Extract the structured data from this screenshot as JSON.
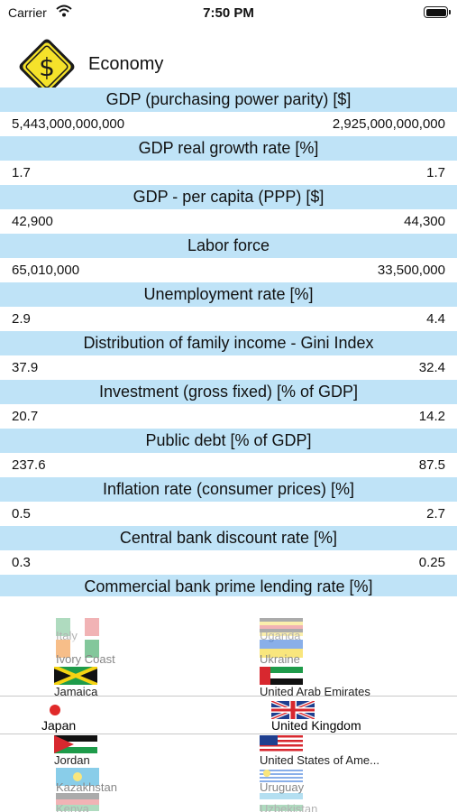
{
  "status": {
    "carrier": "Carrier",
    "time": "7:50 PM"
  },
  "header": {
    "title": "Economy",
    "icon_symbol": "$"
  },
  "rows": [
    {
      "title": "GDP (purchasing power parity) [$]",
      "left": "5,443,000,000,000",
      "right": "2,925,000,000,000"
    },
    {
      "title": "GDP real growth rate [%]",
      "left": "1.7",
      "right": "1.7"
    },
    {
      "title": "GDP - per capita (PPP) [$]",
      "left": "42,900",
      "right": "44,300"
    },
    {
      "title": "Labor force",
      "left": "65,010,000",
      "right": "33,500,000"
    },
    {
      "title": "Unemployment rate [%]",
      "left": "2.9",
      "right": "4.4"
    },
    {
      "title": "Distribution of family income - Gini Index",
      "left": "37.9",
      "right": "32.4"
    },
    {
      "title": "Investment (gross fixed) [% of GDP]",
      "left": "20.7",
      "right": "14.2"
    },
    {
      "title": "Public debt [% of GDP]",
      "left": "237.6",
      "right": "87.5"
    },
    {
      "title": "Inflation rate (consumer prices) [%]",
      "left": "0.5",
      "right": "2.7"
    },
    {
      "title": "Central bank discount rate [%]",
      "left": "0.3",
      "right": "0.25"
    },
    {
      "title": "Commercial bank prime lending rate [%]",
      "left": "",
      "right": ""
    }
  ],
  "picker": {
    "left": {
      "above": [
        "Italy",
        "Ivory Coast",
        "Jamaica"
      ],
      "selected": "Japan",
      "below": [
        "Jordan",
        "Kazakhstan",
        "Kenya"
      ]
    },
    "right": {
      "above": [
        "Uganda",
        "Ukraine",
        "United Arab Emirates"
      ],
      "selected": "United Kingdom",
      "below": [
        "United States of Ame...",
        "Uruguay",
        "Uzbekistan"
      ]
    }
  },
  "colors": {
    "title_row_bg": "#bfe3f7",
    "sign_yellow": "#f5e22a"
  }
}
